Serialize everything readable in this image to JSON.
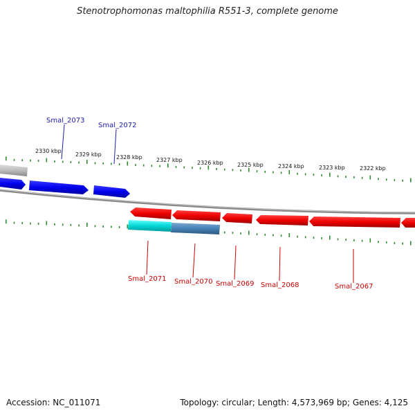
{
  "header": {
    "title": "Stenotrophomonas maltophilia R551-3, complete genome"
  },
  "footer": {
    "accession": "Accession: NC_011071",
    "summary": "Topology: circular; Length: 4,573,969 bp; Genes: 4,125"
  },
  "scale": {
    "labels": [
      "2330 kbp",
      "2329 kbp",
      "2328 kbp",
      "2327 kbp",
      "2326 kbp",
      "2325 kbp",
      "2324 kbp",
      "2323 kbp",
      "2322 kbp"
    ]
  },
  "genes": {
    "forward": [
      {
        "name": "Smal_2073",
        "color": "#0000ee"
      },
      {
        "name": "Smal_2072",
        "color": "#0000ee"
      }
    ],
    "reverse": [
      {
        "name": "Smal_2071",
        "color": "#00cccc"
      },
      {
        "name": "Smal_2070",
        "color": "#4682b4"
      },
      {
        "name": "Smal_2069",
        "color": "#ee0000"
      },
      {
        "name": "Smal_2068",
        "color": "#ee0000"
      },
      {
        "name": "Smal_2067",
        "color": "#ee0000"
      }
    ]
  },
  "colors": {
    "backbone": "#8a8a8a",
    "tick": "#2e8b2e",
    "forward_label": "#1a1aa8",
    "reverse_label": "#cc0000"
  }
}
